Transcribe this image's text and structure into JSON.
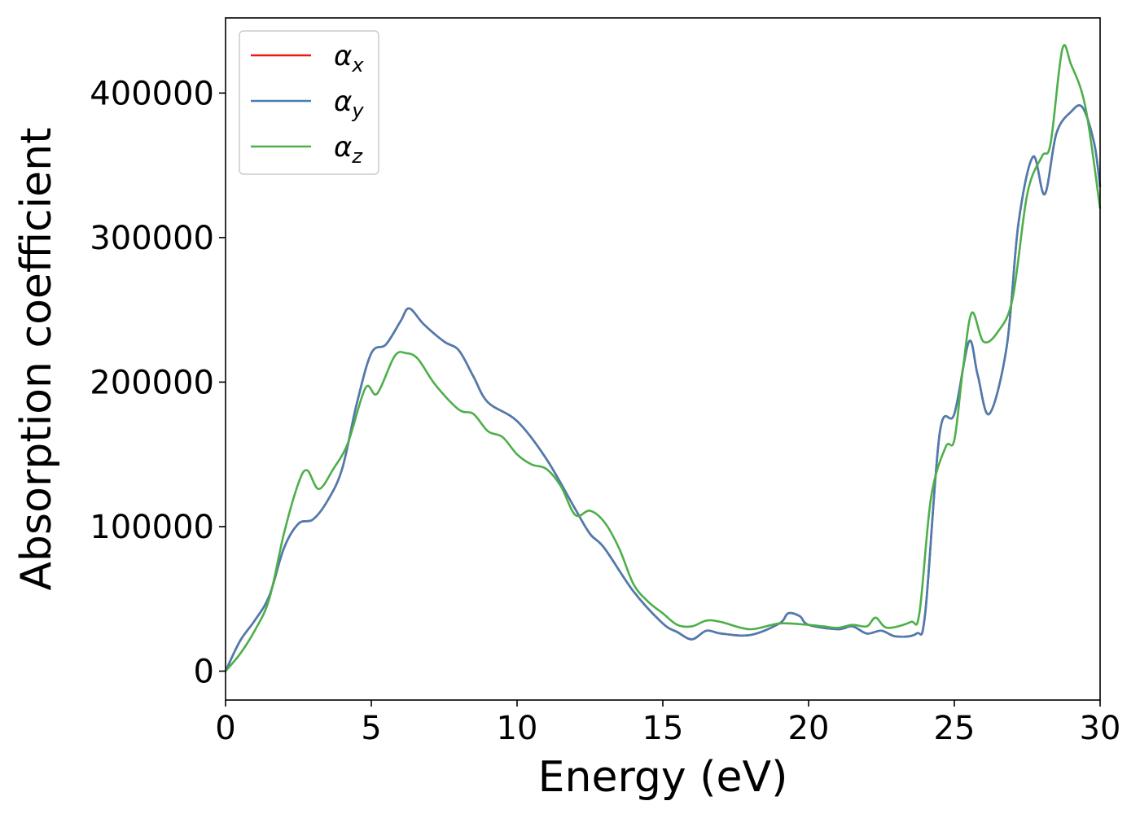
{
  "chart_data": {
    "type": "line",
    "xlabel": "Energy (eV)",
    "ylabel": "Absorption coefficient",
    "xlim": [
      0,
      30
    ],
    "ylim": [
      -20000,
      452000
    ],
    "xticks": [
      "0",
      "5",
      "10",
      "15",
      "20",
      "25",
      "30"
    ],
    "xtick_values": [
      0,
      5,
      10,
      15,
      20,
      25,
      30
    ],
    "yticks": [
      "0",
      "100000",
      "200000",
      "300000",
      "400000"
    ],
    "ytick_values": [
      0,
      100000,
      200000,
      300000,
      400000
    ],
    "grid": false,
    "legend_position": "top-left",
    "series": [
      {
        "name": "α",
        "subscript": "x",
        "color": "#e41a1c",
        "x": [
          0,
          0.5,
          1,
          1.5,
          2,
          2.5,
          3,
          3.5,
          4,
          4.5,
          5,
          5.5,
          6,
          6.3,
          6.8,
          7.5,
          8,
          8.5,
          9,
          10,
          11,
          12,
          12.5,
          13,
          14,
          15,
          15.5,
          16,
          16.5,
          17,
          18,
          19,
          19.3,
          19.7,
          20,
          21,
          21.5,
          22,
          22.5,
          23,
          23.7,
          24,
          24.5,
          25,
          25.5,
          25.8,
          26.2,
          26.8,
          27.2,
          27.7,
          28.1,
          28.5,
          29,
          29.4,
          29.8,
          30
        ],
        "y": [
          0,
          21000,
          35000,
          52000,
          85000,
          102000,
          105000,
          118000,
          140000,
          185000,
          220000,
          226000,
          242000,
          251000,
          240000,
          228000,
          222000,
          204000,
          186000,
          173000,
          147000,
          112000,
          95000,
          85000,
          55000,
          33000,
          27000,
          22000,
          28000,
          26000,
          25000,
          33000,
          40000,
          38000,
          32000,
          29000,
          31000,
          26000,
          28000,
          24000,
          26000,
          40000,
          165000,
          178000,
          228000,
          205000,
          178000,
          225000,
          310000,
          356000,
          330000,
          372000,
          387000,
          390000,
          365000,
          335000
        ]
      },
      {
        "name": "α",
        "subscript": "y",
        "color": "#4a7db0",
        "x": [
          0,
          0.5,
          1,
          1.5,
          2,
          2.5,
          3,
          3.5,
          4,
          4.5,
          5,
          5.5,
          6,
          6.3,
          6.8,
          7.5,
          8,
          8.5,
          9,
          10,
          11,
          12,
          12.5,
          13,
          14,
          15,
          15.5,
          16,
          16.5,
          17,
          18,
          19,
          19.3,
          19.7,
          20,
          21,
          21.5,
          22,
          22.5,
          23,
          23.7,
          24,
          24.5,
          25,
          25.5,
          25.8,
          26.2,
          26.8,
          27.2,
          27.7,
          28.1,
          28.5,
          29,
          29.4,
          29.8,
          30
        ],
        "y": [
          0,
          21000,
          35000,
          52000,
          85000,
          102000,
          105000,
          118000,
          140000,
          185000,
          220000,
          226000,
          242000,
          251000,
          240000,
          228000,
          222000,
          204000,
          186000,
          173000,
          147000,
          112000,
          95000,
          85000,
          55000,
          33000,
          27000,
          22000,
          28000,
          26000,
          25000,
          33000,
          40000,
          38000,
          32000,
          29000,
          31000,
          26000,
          28000,
          24000,
          26000,
          40000,
          165000,
          178000,
          228000,
          205000,
          178000,
          225000,
          310000,
          356000,
          330000,
          372000,
          387000,
          390000,
          365000,
          335000
        ]
      },
      {
        "name": "α",
        "subscript": "z",
        "color": "#4daf4a",
        "x": [
          0,
          0.5,
          1,
          1.5,
          2,
          2.5,
          2.8,
          3.2,
          3.7,
          4.2,
          4.8,
          5.2,
          5.8,
          6.2,
          6.6,
          7.2,
          8,
          8.5,
          9,
          9.5,
          10,
          10.5,
          11,
          11.5,
          12,
          12.5,
          13,
          13.5,
          14,
          14.5,
          15,
          15.5,
          16,
          16.5,
          17,
          18,
          19,
          20,
          20.5,
          21,
          21.5,
          22,
          22.3,
          22.7,
          23.5,
          23.8,
          24.2,
          24.7,
          25,
          25.3,
          25.6,
          26,
          26.5,
          27,
          27.5,
          28,
          28.3,
          28.7,
          29,
          29.5,
          30
        ],
        "y": [
          0,
          12000,
          28000,
          50000,
          95000,
          130000,
          139000,
          126000,
          140000,
          158000,
          196000,
          192000,
          218000,
          220000,
          216000,
          198000,
          181000,
          178000,
          166000,
          162000,
          150000,
          143000,
          140000,
          128000,
          108000,
          111000,
          103000,
          85000,
          60000,
          48000,
          40000,
          32000,
          31000,
          35000,
          34000,
          29000,
          33000,
          32000,
          31000,
          30000,
          32000,
          31000,
          37000,
          30000,
          34000,
          40000,
          120000,
          155000,
          160000,
          210000,
          248000,
          228000,
          235000,
          258000,
          330000,
          356000,
          365000,
          430000,
          420000,
          390000,
          320000
        ]
      }
    ]
  }
}
